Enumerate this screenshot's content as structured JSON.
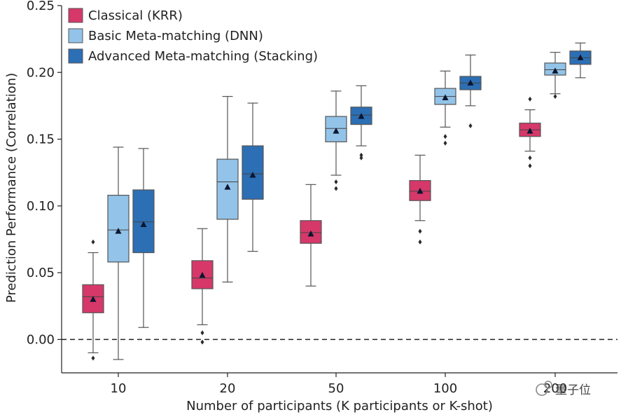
{
  "chart_data": {
    "type": "box",
    "title": "",
    "xlabel": "Number of participants (K participants or K-shot)",
    "ylabel": "Prediction Performance (Correlation)",
    "ylim": [
      -0.025,
      0.25
    ],
    "yticks": [
      "0.00",
      "0.05",
      "0.10",
      "0.15",
      "0.20",
      "0.25"
    ],
    "ytick_values": [
      0,
      0.05,
      0.1,
      0.15,
      0.2,
      0.25
    ],
    "categories": [
      "10",
      "20",
      "50",
      "100",
      "200"
    ],
    "reference_line": 0,
    "legend_position": "top-left",
    "series": [
      {
        "name": "Classical (KRR)",
        "color": "#d6386a",
        "boxes": [
          {
            "whisker_low": -0.01,
            "q1": 0.02,
            "median": 0.032,
            "q3": 0.041,
            "whisker_high": 0.065,
            "mean": 0.03,
            "outliers": [
              0.073,
              -0.014
            ]
          },
          {
            "whisker_low": 0.011,
            "q1": 0.038,
            "median": 0.046,
            "q3": 0.059,
            "whisker_high": 0.083,
            "mean": 0.048,
            "outliers": [
              0.005,
              -0.002
            ]
          },
          {
            "whisker_low": 0.04,
            "q1": 0.072,
            "median": 0.08,
            "q3": 0.089,
            "whisker_high": 0.116,
            "mean": 0.079,
            "outliers": []
          },
          {
            "whisker_low": 0.089,
            "q1": 0.104,
            "median": 0.111,
            "q3": 0.119,
            "whisker_high": 0.138,
            "mean": 0.111,
            "outliers": [
              0.081,
              0.073
            ]
          },
          {
            "whisker_low": 0.141,
            "q1": 0.152,
            "median": 0.157,
            "q3": 0.162,
            "whisker_high": 0.172,
            "mean": 0.156,
            "outliers": [
              0.18,
              0.136,
              0.13
            ]
          }
        ]
      },
      {
        "name": "Basic Meta-matching (DNN)",
        "color": "#93c3e8",
        "boxes": [
          {
            "whisker_low": -0.015,
            "q1": 0.058,
            "median": 0.082,
            "q3": 0.108,
            "whisker_high": 0.144,
            "mean": 0.081,
            "outliers": []
          },
          {
            "whisker_low": 0.043,
            "q1": 0.09,
            "median": 0.118,
            "q3": 0.135,
            "whisker_high": 0.182,
            "mean": 0.114,
            "outliers": []
          },
          {
            "whisker_low": 0.123,
            "q1": 0.148,
            "median": 0.158,
            "q3": 0.167,
            "whisker_high": 0.186,
            "mean": 0.156,
            "outliers": [
              0.118,
              0.113
            ]
          },
          {
            "whisker_low": 0.159,
            "q1": 0.176,
            "median": 0.182,
            "q3": 0.188,
            "whisker_high": 0.201,
            "mean": 0.181,
            "outliers": [
              0.152,
              0.147
            ]
          },
          {
            "whisker_low": 0.184,
            "q1": 0.198,
            "median": 0.202,
            "q3": 0.207,
            "whisker_high": 0.215,
            "mean": 0.201,
            "outliers": [
              0.182
            ]
          }
        ]
      },
      {
        "name": "Advanced Meta-matching (Stacking)",
        "color": "#2c6fb5",
        "boxes": [
          {
            "whisker_low": 0.009,
            "q1": 0.065,
            "median": 0.088,
            "q3": 0.112,
            "whisker_high": 0.143,
            "mean": 0.086,
            "outliers": []
          },
          {
            "whisker_low": 0.066,
            "q1": 0.105,
            "median": 0.124,
            "q3": 0.145,
            "whisker_high": 0.177,
            "mean": 0.123,
            "outliers": []
          },
          {
            "whisker_low": 0.145,
            "q1": 0.161,
            "median": 0.168,
            "q3": 0.174,
            "whisker_high": 0.19,
            "mean": 0.167,
            "outliers": [
              0.138,
              0.136
            ]
          },
          {
            "whisker_low": 0.175,
            "q1": 0.187,
            "median": 0.192,
            "q3": 0.197,
            "whisker_high": 0.213,
            "mean": 0.192,
            "outliers": [
              0.16
            ]
          },
          {
            "whisker_low": 0.196,
            "q1": 0.206,
            "median": 0.211,
            "q3": 0.216,
            "whisker_high": 0.222,
            "mean": 0.211,
            "outliers": []
          }
        ]
      }
    ]
  },
  "watermark": {
    "text": "量子位"
  }
}
